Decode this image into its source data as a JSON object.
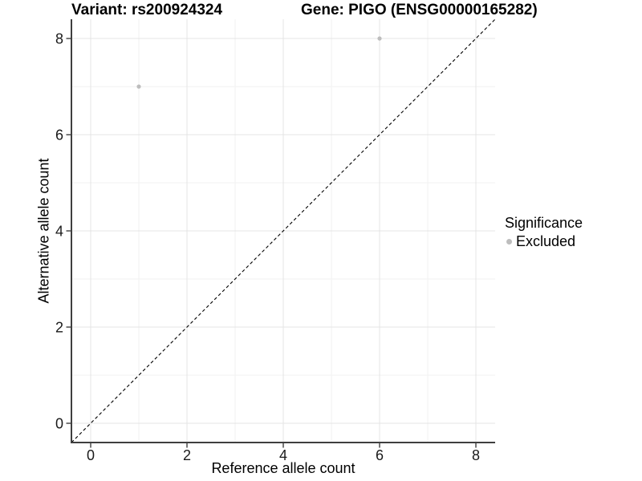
{
  "chart_data": {
    "type": "scatter",
    "title_left": "Variant: rs200924324",
    "title_right": "Gene: PIGO (ENSG00000165282)",
    "xlabel": "Reference allele count",
    "ylabel": "Alternative allele count",
    "xlim": [
      -0.4,
      8.4
    ],
    "ylim": [
      -0.4,
      8.4
    ],
    "xticks": [
      0,
      2,
      4,
      6,
      8
    ],
    "yticks": [
      0,
      2,
      4,
      6,
      8
    ],
    "xticks_minor": [
      1,
      3,
      5,
      7
    ],
    "yticks_minor": [
      1,
      3,
      5,
      7
    ],
    "grid": "major+minor",
    "reference_line": {
      "type": "identity",
      "style": "dashed",
      "color": "#000000"
    },
    "series": [
      {
        "name": "Excluded",
        "color": "#bdbdbd",
        "points": [
          [
            1,
            7
          ],
          [
            6,
            8
          ]
        ]
      }
    ],
    "legend": {
      "title": "Significance",
      "position": "right",
      "items": [
        {
          "label": "Excluded",
          "color": "#bdbdbd"
        }
      ]
    }
  },
  "colors": {
    "background": "#ffffff",
    "grid_major": "#e4e4e4",
    "grid_minor": "#f2f2f2",
    "axis": "#3f3f3f",
    "tick_text": "#1a1a1a",
    "point": "#bdbdbd"
  }
}
